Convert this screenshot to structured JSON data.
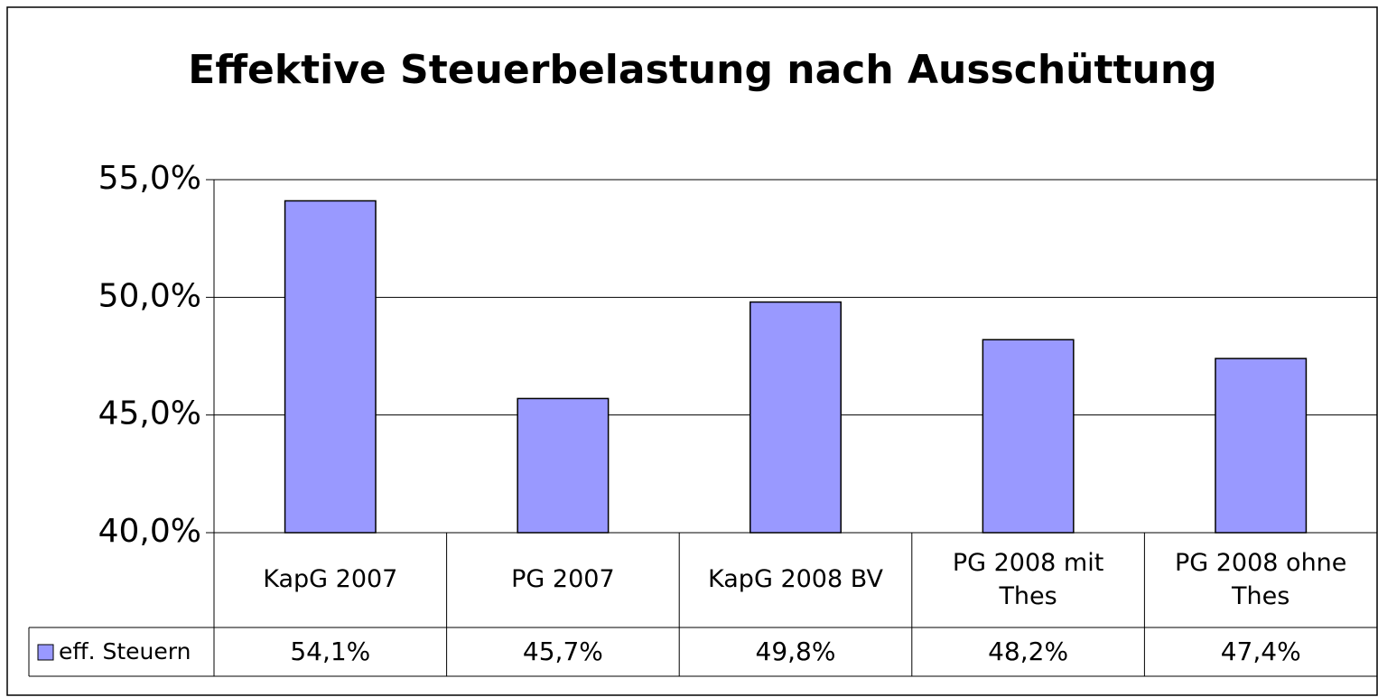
{
  "chart_data": {
    "type": "bar",
    "title": "Effektive Steuerbelastung nach Ausschüttung",
    "categories": [
      "KapG 2007",
      "PG 2007",
      "KapG 2008 BV",
      "PG 2008 mit Thes",
      "PG 2008 ohne Thes"
    ],
    "series": [
      {
        "name": "eff. Steuern",
        "color": "#9999ff",
        "values": [
          54.1,
          45.7,
          49.8,
          48.2,
          47.4
        ],
        "value_labels": [
          "54,1%",
          "45,7%",
          "49,8%",
          "48,2%",
          "47,4%"
        ]
      }
    ],
    "ylim": [
      40,
      55
    ],
    "yticks": [
      {
        "value": 40,
        "label": "40,0%"
      },
      {
        "value": 45,
        "label": "45,0%"
      },
      {
        "value": 50,
        "label": "50,0%"
      },
      {
        "value": 55,
        "label": "55,0%"
      }
    ],
    "grid": true
  }
}
